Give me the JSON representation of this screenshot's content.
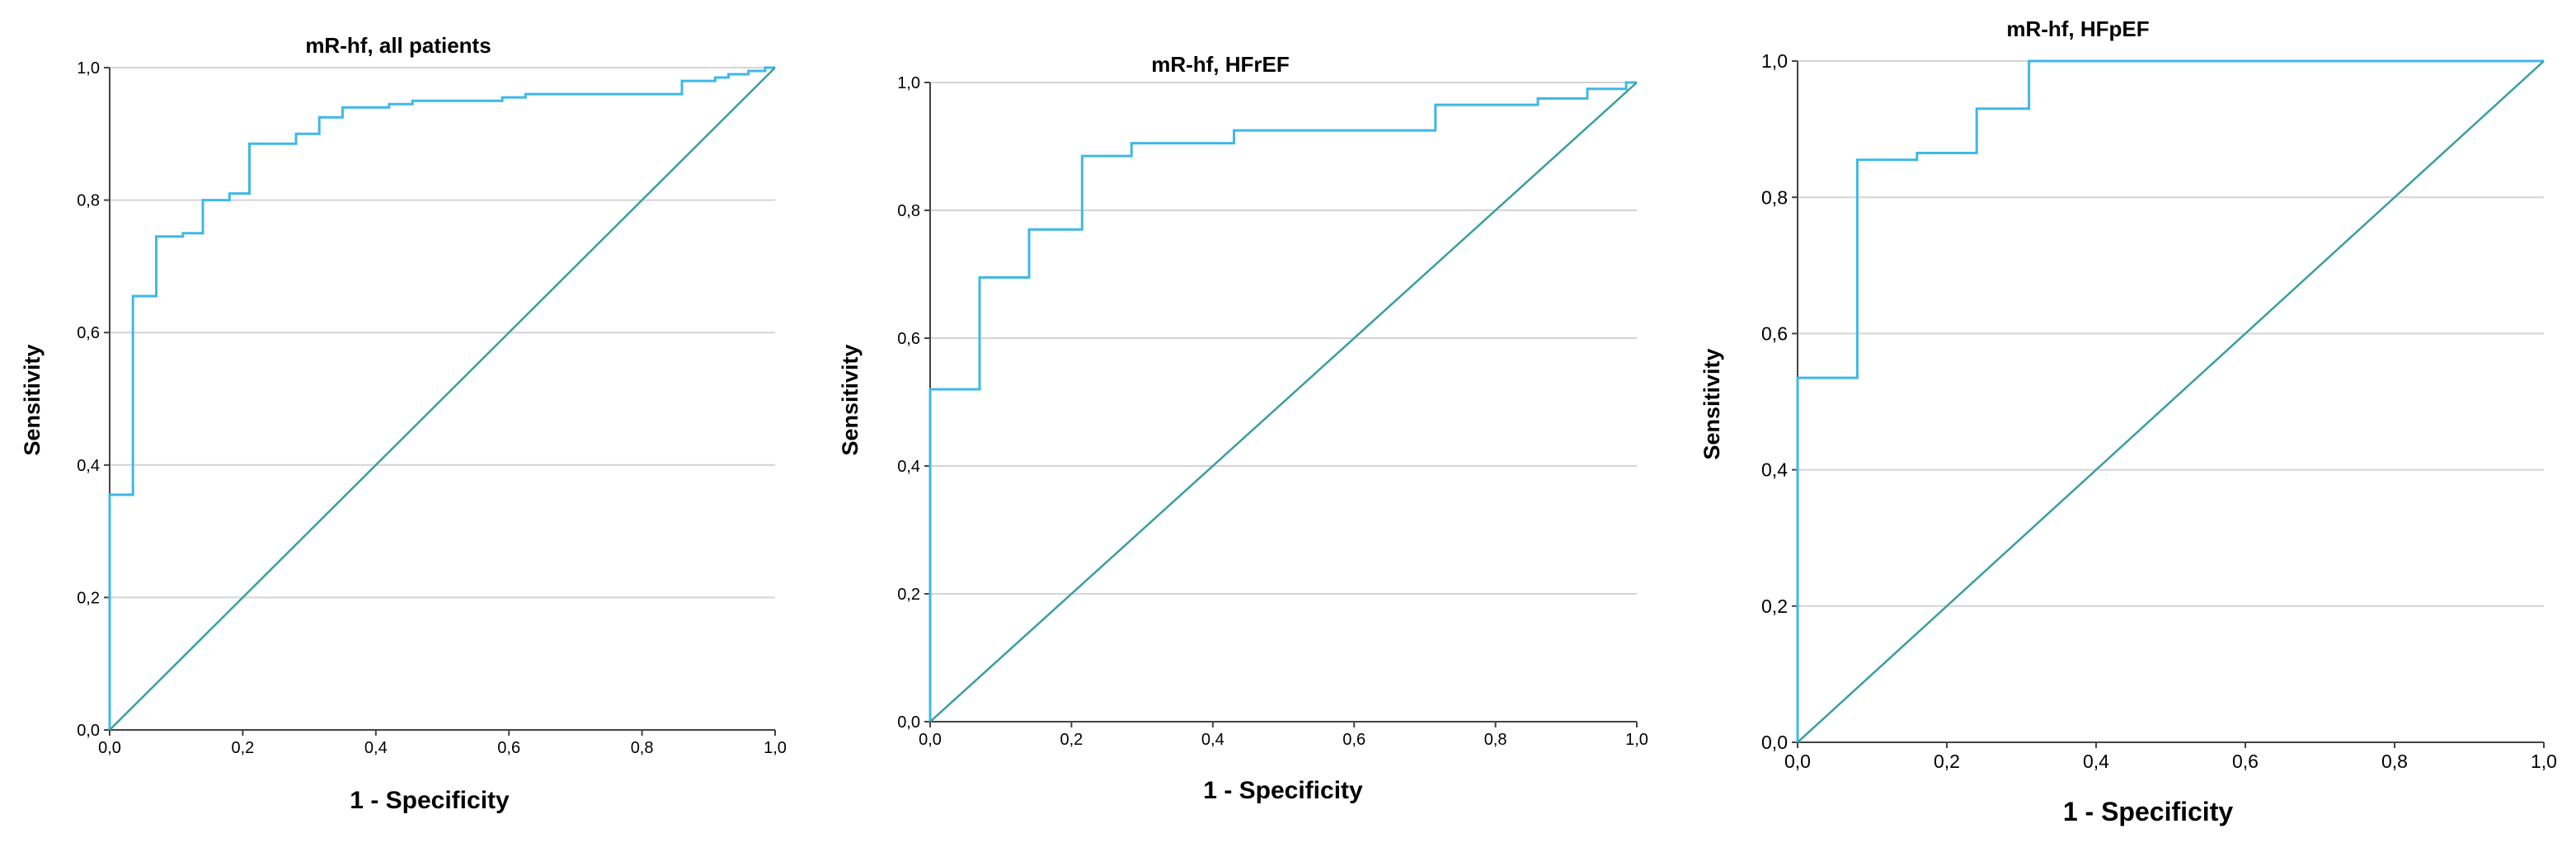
{
  "chart_data": [
    {
      "type": "line",
      "title": "mR-hf, all patients",
      "xlabel": "1 - Specificity",
      "ylabel": "Sensitivity",
      "xlim": [
        0,
        1
      ],
      "ylim": [
        0,
        1
      ],
      "xticks": [
        "0,0",
        "0,2",
        "0,4",
        "0,6",
        "0,8",
        "1,0"
      ],
      "yticks": [
        "0,0",
        "0,2",
        "0,4",
        "0,6",
        "0,8",
        "1,0"
      ],
      "grid": "horizontal",
      "series": [
        {
          "style": "step",
          "color": "#3fb8e8",
          "points": [
            [
              0,
              0
            ],
            [
              0,
              0.355
            ],
            [
              0.035,
              0.355
            ],
            [
              0.035,
              0.655
            ],
            [
              0.07,
              0.655
            ],
            [
              0.07,
              0.745
            ],
            [
              0.11,
              0.745
            ],
            [
              0.11,
              0.75
            ],
            [
              0.14,
              0.75
            ],
            [
              0.14,
              0.8
            ],
            [
              0.18,
              0.8
            ],
            [
              0.18,
              0.81
            ],
            [
              0.21,
              0.81
            ],
            [
              0.21,
              0.885
            ],
            [
              0.28,
              0.885
            ],
            [
              0.28,
              0.9
            ],
            [
              0.315,
              0.9
            ],
            [
              0.315,
              0.925
            ],
            [
              0.35,
              0.925
            ],
            [
              0.35,
              0.94
            ],
            [
              0.42,
              0.94
            ],
            [
              0.42,
              0.945
            ],
            [
              0.455,
              0.945
            ],
            [
              0.455,
              0.95
            ],
            [
              0.59,
              0.95
            ],
            [
              0.59,
              0.955
            ],
            [
              0.625,
              0.955
            ],
            [
              0.625,
              0.96
            ],
            [
              0.86,
              0.96
            ],
            [
              0.86,
              0.98
            ],
            [
              0.91,
              0.98
            ],
            [
              0.91,
              0.985
            ],
            [
              0.93,
              0.985
            ],
            [
              0.93,
              0.99
            ],
            [
              0.96,
              0.99
            ],
            [
              0.96,
              0.995
            ],
            [
              0.985,
              0.995
            ],
            [
              0.985,
              1.0
            ],
            [
              1.0,
              1.0
            ]
          ]
        },
        {
          "style": "reference",
          "color": "#3a9ea0",
          "points": [
            [
              0,
              0
            ],
            [
              1,
              1
            ]
          ]
        }
      ]
    },
    {
      "type": "line",
      "title": "mR-hf, HFrEF",
      "xlabel": "1 - Specificity",
      "ylabel": "Sensitivity",
      "xlim": [
        0,
        1
      ],
      "ylim": [
        0,
        1
      ],
      "xticks": [
        "0,0",
        "0,2",
        "0,4",
        "0,6",
        "0,8",
        "1,0"
      ],
      "yticks": [
        "0,0",
        "0,2",
        "0,4",
        "0,6",
        "0,8",
        "1,0"
      ],
      "grid": "horizontal",
      "series": [
        {
          "style": "step",
          "color": "#3fb8e8",
          "points": [
            [
              0,
              0
            ],
            [
              0,
              0.52
            ],
            [
              0.07,
              0.52
            ],
            [
              0.07,
              0.695
            ],
            [
              0.14,
              0.695
            ],
            [
              0.14,
              0.77
            ],
            [
              0.215,
              0.77
            ],
            [
              0.215,
              0.885
            ],
            [
              0.285,
              0.885
            ],
            [
              0.285,
              0.905
            ],
            [
              0.43,
              0.905
            ],
            [
              0.43,
              0.925
            ],
            [
              0.715,
              0.925
            ],
            [
              0.715,
              0.965
            ],
            [
              0.86,
              0.965
            ],
            [
              0.86,
              0.975
            ],
            [
              0.93,
              0.975
            ],
            [
              0.93,
              0.99
            ],
            [
              0.985,
              0.99
            ],
            [
              0.985,
              1.0
            ],
            [
              1.0,
              1.0
            ]
          ]
        },
        {
          "style": "reference",
          "color": "#3a9ea0",
          "points": [
            [
              0,
              0
            ],
            [
              1,
              1
            ]
          ]
        }
      ]
    },
    {
      "type": "line",
      "title": "mR-hf, HFpEF",
      "xlabel": "1 - Specificity",
      "ylabel": "Sensitivity",
      "xlim": [
        0,
        1
      ],
      "ylim": [
        0,
        1
      ],
      "xticks": [
        "0,0",
        "0,2",
        "0,4",
        "0,6",
        "0,8",
        "1,0"
      ],
      "yticks": [
        "0,0",
        "0,2",
        "0,4",
        "0,6",
        "0,8",
        "1,0"
      ],
      "grid": "horizontal",
      "series": [
        {
          "style": "step",
          "color": "#3fb8e8",
          "points": [
            [
              0,
              0
            ],
            [
              0,
              0.535
            ],
            [
              0.08,
              0.535
            ],
            [
              0.08,
              0.855
            ],
            [
              0.16,
              0.855
            ],
            [
              0.16,
              0.865
            ],
            [
              0.24,
              0.865
            ],
            [
              0.24,
              0.93
            ],
            [
              0.31,
              0.93
            ],
            [
              0.31,
              1.0
            ],
            [
              1.0,
              1.0
            ]
          ]
        },
        {
          "style": "reference",
          "color": "#3a9ea0",
          "points": [
            [
              0,
              0
            ],
            [
              1,
              1
            ]
          ]
        }
      ]
    }
  ]
}
